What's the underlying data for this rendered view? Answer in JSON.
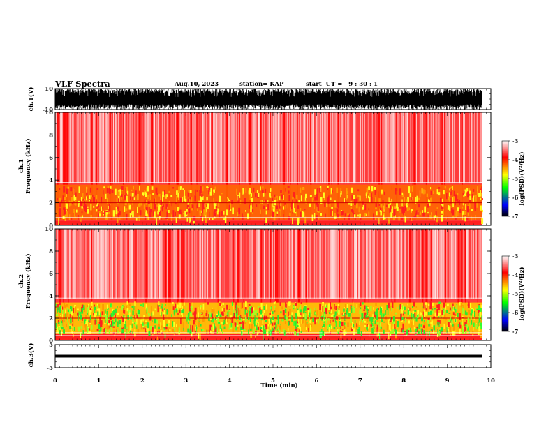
{
  "header": {
    "title": "VLF Spectra",
    "date": "Aug.10, 2023",
    "station": "station= KAP",
    "start": "start  UT =   9 : 30 : 1"
  },
  "axes": {
    "ch1_label": "ch.1(V)",
    "ch1_ticks": [
      "10",
      "-10"
    ],
    "spec1_label": "ch.1\nFrequency (kHz)",
    "spec2_label": "ch.2\nFrequency (kHz)",
    "ch3_label": "ch.3(V)",
    "ch3_ticks": [
      "5",
      "-5"
    ],
    "freq_ticks": [
      "0",
      "2",
      "4",
      "6",
      "8",
      "10"
    ],
    "x_ticks": [
      "0",
      "1",
      "2",
      "3",
      "4",
      "5",
      "6",
      "7",
      "8",
      "9",
      "10"
    ],
    "xlabel": "Time (min)"
  },
  "colorbar": {
    "label": "log(PSD)(V²/Hz)",
    "ticks": [
      "-3",
      "-4",
      "-5",
      "-6",
      "-7"
    ],
    "colors": [
      "#ffffff",
      "#ff0000",
      "#ffff00",
      "#00ff00",
      "#0000ff",
      "#000000"
    ]
  },
  "chart_data": [
    {
      "type": "line",
      "name": "ch.1 waveform",
      "ylabel": "ch.1(V)",
      "ylim": [
        -10,
        10
      ],
      "xlim": [
        0,
        10
      ],
      "xlabel": "Time (min)",
      "description_values": {
        "amplitude_range": [
          -10,
          10
        ]
      }
    },
    {
      "type": "heatmap",
      "ylabel": "Frequency (kHz)",
      "ylim": [
        0,
        10
      ],
      "xlim": [
        0,
        9.8
      ],
      "zlim": [
        -7,
        -3
      ],
      "bands_khz": [
        {
          "from": 0.0,
          "to": 0.5,
          "log_psd": -3.5
        },
        {
          "from": 0.5,
          "to": 3.6,
          "log_psd": -4.2
        },
        {
          "from": 3.6,
          "to": 10.0,
          "log_psd": -3.2
        }
      ]
    },
    {
      "type": "heatmap",
      "ylabel": "Frequency (kHz)",
      "ylim": [
        0,
        10
      ],
      "xlim": [
        0,
        9.8
      ],
      "zlim": [
        -7,
        -3
      ],
      "bands_khz": [
        {
          "from": 0.0,
          "to": 0.6,
          "log_psd": -3.6
        },
        {
          "from": 0.6,
          "to": 3.5,
          "log_psd": -4.8
        },
        {
          "from": 3.5,
          "to": 10.0,
          "log_psd": -3.2
        }
      ]
    },
    {
      "type": "line",
      "ylabel": "ch.3(V)",
      "ylim": [
        -5,
        5
      ],
      "xlim": [
        0,
        10
      ],
      "level_v": 0.0
    }
  ]
}
